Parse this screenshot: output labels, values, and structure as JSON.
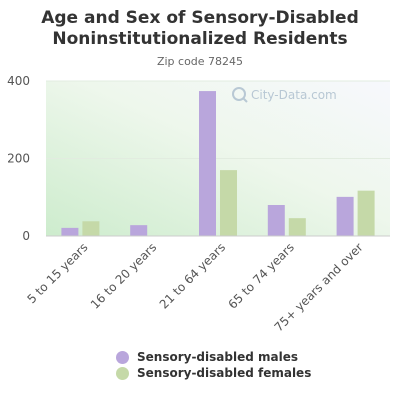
{
  "chart_data": {
    "type": "bar",
    "title": "Age and Sex of Sensory-Disabled Noninstitutionalized Residents",
    "subtitle": "Zip code 78245",
    "categories": [
      "5 to 15 years",
      "16 to 20 years",
      "21 to 64 years",
      "65 to 74 years",
      "75+ years and over"
    ],
    "series": [
      {
        "name": "Sensory-disabled males",
        "color": "#b9a6dc",
        "values": [
          21,
          28,
          374,
          80,
          101
        ]
      },
      {
        "name": "Sensory-disabled females",
        "color": "#c5d9a8",
        "values": [
          38,
          0,
          170,
          46,
          117
        ]
      }
    ],
    "yticks": [
      "0",
      "200",
      "400"
    ],
    "ylim": [
      0,
      400
    ],
    "grid": true,
    "legend_position": "bottom",
    "watermark": "City-Data.com"
  }
}
